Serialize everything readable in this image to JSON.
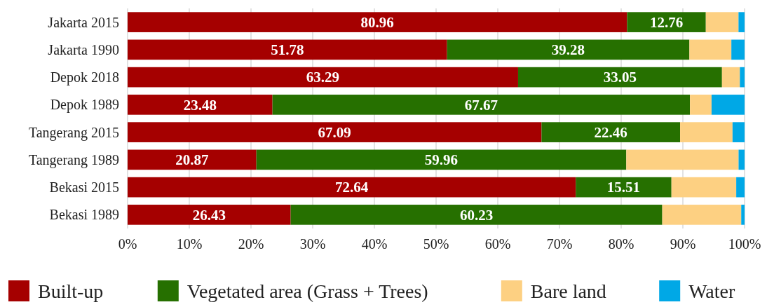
{
  "chart_data": {
    "type": "bar",
    "orientation": "horizontal",
    "stacked": true,
    "categories": [
      "Jakarta 2015",
      "Jakarta 1990",
      "Depok 2018",
      "Depok 1989",
      "Tangerang 2015",
      "Tangerang 1989",
      "Bekasi 2015",
      "Bekasi 1989"
    ],
    "series": [
      {
        "name": "Built-up",
        "color": "#a50000",
        "values": [
          80.96,
          51.78,
          63.29,
          23.48,
          67.09,
          20.87,
          72.64,
          26.43
        ],
        "value_labels": [
          "80.96",
          "51.78",
          "63.29",
          "23.48",
          "67.09",
          "20.87",
          "72.64",
          "26.43"
        ]
      },
      {
        "name": "Vegetated area (Grass + Trees)",
        "color": "#267000",
        "values": [
          12.76,
          39.28,
          33.05,
          67.67,
          22.46,
          59.96,
          15.51,
          60.23
        ],
        "value_labels": [
          "12.76",
          "39.28",
          "33.05",
          "67.67",
          "22.46",
          "59.96",
          "15.51",
          "60.23"
        ]
      },
      {
        "name": "Bare land",
        "color": "#fdd082",
        "values": [
          5.3,
          6.8,
          2.9,
          3.5,
          8.5,
          18.2,
          10.5,
          12.8
        ]
      },
      {
        "name": "Water",
        "color": "#00a8e6",
        "values": [
          0.98,
          2.14,
          0.76,
          5.35,
          1.95,
          0.97,
          1.35,
          0.54
        ]
      }
    ],
    "xlim": [
      0,
      100
    ],
    "xticks": [
      {
        "value": 0,
        "label": "0%"
      },
      {
        "value": 10,
        "label": "10%"
      },
      {
        "value": 20,
        "label": "20%"
      },
      {
        "value": 30,
        "label": "30%"
      },
      {
        "value": 40,
        "label": "40%"
      },
      {
        "value": 50,
        "label": "50%"
      },
      {
        "value": 60,
        "label": "60%"
      },
      {
        "value": 70,
        "label": "70%"
      },
      {
        "value": 80,
        "label": "80%"
      },
      {
        "value": 90,
        "label": "90%"
      },
      {
        "value": 100,
        "label": "100%"
      }
    ],
    "grid": "x",
    "legend": "bottom"
  }
}
